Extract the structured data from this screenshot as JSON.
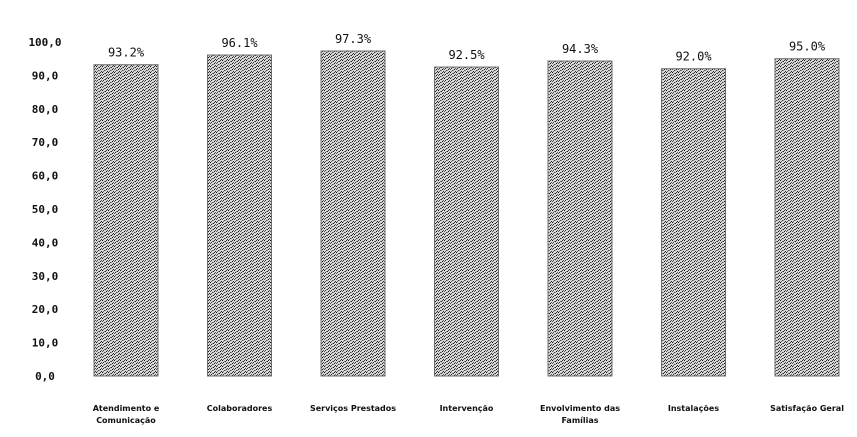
{
  "chart_data": {
    "type": "bar",
    "categories": [
      "Atendimento e Comunicação",
      "Colaboradores",
      "Serviços Prestados",
      "Intervenção",
      "Envolvimento das Famílias",
      "Instalações",
      "Satisfação Geral"
    ],
    "values": [
      93.2,
      96.1,
      97.3,
      92.5,
      94.3,
      92.0,
      95.0
    ],
    "data_labels": [
      "93.2%",
      "96.1%",
      "97.3%",
      "92.5%",
      "94.3%",
      "92.0%",
      "95.0%"
    ],
    "y_ticks": [
      "0,0",
      "10,0",
      "20,0",
      "30,0",
      "40,0",
      "50,0",
      "60,0",
      "70,0",
      "80,0",
      "90,0",
      "100,0"
    ],
    "ylim": [
      0,
      100
    ],
    "grid": false,
    "legend": "none",
    "bar_color": "#6b6b6b"
  }
}
